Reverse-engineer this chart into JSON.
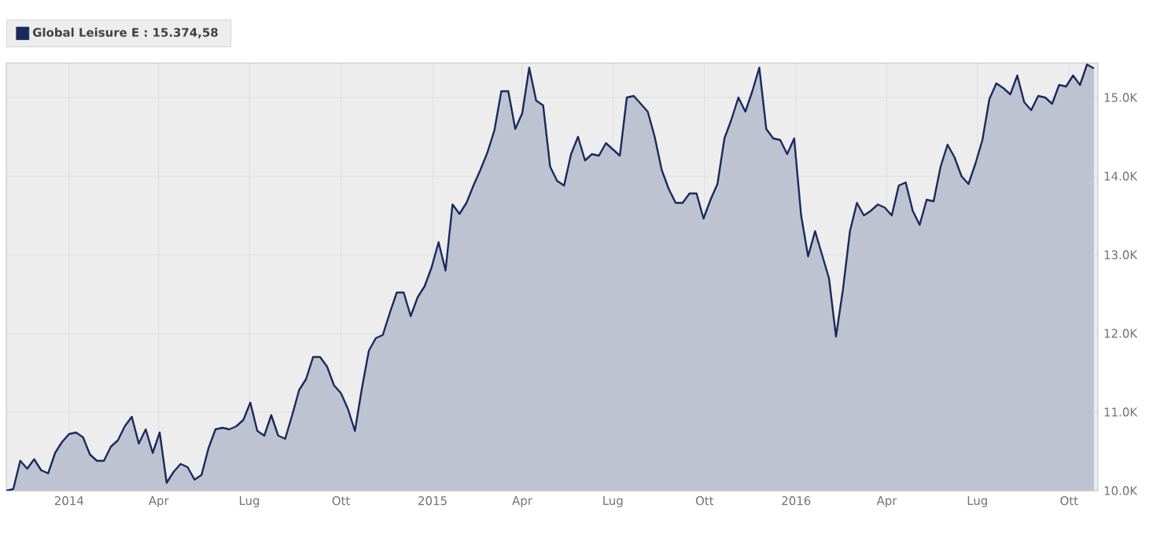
{
  "chart_data": {
    "type": "area",
    "legend": "top left",
    "grid": true,
    "marker": "none",
    "line_style": "solid",
    "xlim": [
      "2013-10-30",
      "2016-10-30"
    ],
    "xticks": [
      {
        "value": "2014-01-01",
        "label": "2014"
      },
      {
        "value": "2014-04-01",
        "label": "Apr"
      },
      {
        "value": "2014-07-01",
        "label": "Lug"
      },
      {
        "value": "2014-10-01",
        "label": "Ott"
      },
      {
        "value": "2015-01-01",
        "label": "2015"
      },
      {
        "value": "2015-04-01",
        "label": "Apr"
      },
      {
        "value": "2015-07-01",
        "label": "Lug"
      },
      {
        "value": "2015-10-01",
        "label": "Ott"
      },
      {
        "value": "2016-01-01",
        "label": "2016"
      },
      {
        "value": "2016-04-01",
        "label": "Apr"
      },
      {
        "value": "2016-07-01",
        "label": "Lug"
      },
      {
        "value": "2016-10-01",
        "label": "Ott"
      }
    ],
    "ylim": [
      10000,
      15440
    ],
    "yticks": [
      {
        "value": 10000,
        "label": "10.0K"
      },
      {
        "value": 11000,
        "label": "11.0K"
      },
      {
        "value": 12000,
        "label": "12.0K"
      },
      {
        "value": 13000,
        "label": "13.0K"
      },
      {
        "value": 14000,
        "label": "14.0K"
      },
      {
        "value": 15000,
        "label": "15.0K"
      }
    ],
    "x": [
      "2013-10-30",
      "2013-11-06",
      "2013-11-13",
      "2013-11-20",
      "2013-11-27",
      "2013-12-04",
      "2013-12-11",
      "2013-12-18",
      "2013-12-25",
      "2014-01-01",
      "2014-01-08",
      "2014-01-15",
      "2014-01-22",
      "2014-01-29",
      "2014-02-05",
      "2014-02-12",
      "2014-02-19",
      "2014-02-26",
      "2014-03-05",
      "2014-03-12",
      "2014-03-19",
      "2014-03-26",
      "2014-04-02",
      "2014-04-09",
      "2014-04-16",
      "2014-04-23",
      "2014-04-30",
      "2014-05-07",
      "2014-05-14",
      "2014-05-21",
      "2014-05-28",
      "2014-06-04",
      "2014-06-11",
      "2014-06-18",
      "2014-06-25",
      "2014-07-02",
      "2014-07-09",
      "2014-07-16",
      "2014-07-23",
      "2014-07-30",
      "2014-08-06",
      "2014-08-13",
      "2014-08-20",
      "2014-08-27",
      "2014-09-03",
      "2014-09-10",
      "2014-09-17",
      "2014-09-24",
      "2014-10-01",
      "2014-10-08",
      "2014-10-15",
      "2014-10-22",
      "2014-10-29",
      "2014-11-05",
      "2014-11-12",
      "2014-11-19",
      "2014-11-26",
      "2014-12-03",
      "2014-12-10",
      "2014-12-17",
      "2014-12-24",
      "2014-12-31",
      "2015-01-07",
      "2015-01-14",
      "2015-01-21",
      "2015-01-28",
      "2015-02-04",
      "2015-02-11",
      "2015-02-18",
      "2015-02-25",
      "2015-03-04",
      "2015-03-11",
      "2015-03-18",
      "2015-03-25",
      "2015-04-01",
      "2015-04-08",
      "2015-04-15",
      "2015-04-22",
      "2015-04-29",
      "2015-05-06",
      "2015-05-13",
      "2015-05-20",
      "2015-05-27",
      "2015-06-03",
      "2015-06-10",
      "2015-06-17",
      "2015-06-24",
      "2015-07-01",
      "2015-07-08",
      "2015-07-15",
      "2015-07-22",
      "2015-07-29",
      "2015-08-05",
      "2015-08-12",
      "2015-08-19",
      "2015-08-26",
      "2015-09-02",
      "2015-09-09",
      "2015-09-16",
      "2015-09-23",
      "2015-09-30",
      "2015-10-07",
      "2015-10-14",
      "2015-10-21",
      "2015-10-28",
      "2015-11-04",
      "2015-11-11",
      "2015-11-18",
      "2015-11-25",
      "2015-12-02",
      "2015-12-09",
      "2015-12-16",
      "2015-12-23",
      "2015-12-30",
      "2016-01-06",
      "2016-01-13",
      "2016-01-20",
      "2016-01-27",
      "2016-02-03",
      "2016-02-10",
      "2016-02-17",
      "2016-02-24",
      "2016-03-02",
      "2016-03-09",
      "2016-03-16",
      "2016-03-23",
      "2016-03-30",
      "2016-04-06",
      "2016-04-13",
      "2016-04-20",
      "2016-04-27",
      "2016-05-04",
      "2016-05-11",
      "2016-05-18",
      "2016-05-25",
      "2016-06-01",
      "2016-06-08",
      "2016-06-15",
      "2016-06-22",
      "2016-06-29",
      "2016-07-06",
      "2016-07-13",
      "2016-07-20",
      "2016-07-27",
      "2016-08-03",
      "2016-08-10",
      "2016-08-17",
      "2016-08-24",
      "2016-08-31",
      "2016-09-07",
      "2016-09-14",
      "2016-09-21",
      "2016-09-28",
      "2016-10-05",
      "2016-10-12",
      "2016-10-19",
      "2016-10-26"
    ],
    "series": [
      {
        "name": "Global Leisure E : 15.374,58",
        "color": "#1a2a5e",
        "values": [
          10000,
          10020,
          10380,
          10280,
          10400,
          10260,
          10220,
          10480,
          10620,
          10720,
          10740,
          10680,
          10460,
          10380,
          10380,
          10560,
          10640,
          10820,
          10940,
          10600,
          10780,
          10480,
          10740,
          10100,
          10240,
          10340,
          10300,
          10140,
          10200,
          10540,
          10780,
          10800,
          10780,
          10820,
          10900,
          11120,
          10760,
          10700,
          10960,
          10700,
          10660,
          10960,
          11280,
          11420,
          11700,
          11700,
          11580,
          11340,
          11240,
          11040,
          10760,
          11300,
          11780,
          11940,
          11980,
          12260,
          12520,
          12520,
          12220,
          12460,
          12600,
          12840,
          13160,
          12800,
          13640,
          13520,
          13660,
          13880,
          14080,
          14300,
          14580,
          15080,
          15080,
          14600,
          14800,
          15380,
          14960,
          14900,
          14120,
          13940,
          13880,
          14280,
          14500,
          14200,
          14280,
          14260,
          14420,
          14340,
          14260,
          15000,
          15020,
          14920,
          14820,
          14500,
          14080,
          13840,
          13660,
          13660,
          13780,
          13780,
          13460,
          13700,
          13900,
          14480,
          14720,
          15000,
          14820,
          15080,
          15380,
          14600,
          14480,
          14460,
          14280,
          14480,
          13500,
          12980,
          13300,
          13000,
          12700,
          11960,
          12560,
          13300,
          13660,
          13500,
          13560,
          13640,
          13600,
          13500,
          13880,
          13920,
          13560,
          13380,
          13700,
          13680,
          14120,
          14400,
          14240,
          14000,
          13900,
          14160,
          14460,
          14980,
          15180,
          15120,
          15040,
          15280,
          14940,
          14840,
          15020,
          15000,
          14920,
          15160,
          15140,
          15280,
          15160,
          15420,
          15370
        ]
      }
    ]
  }
}
